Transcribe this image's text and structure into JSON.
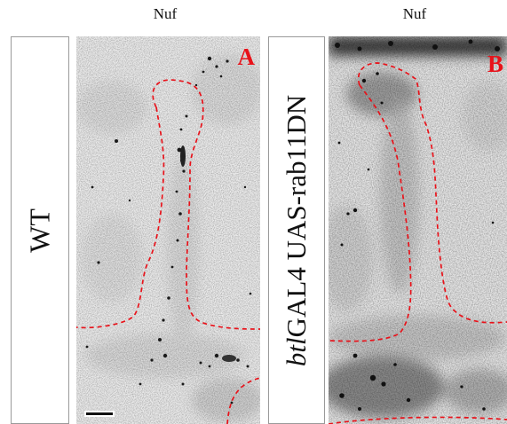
{
  "columns": {
    "a_title": "Nuf",
    "b_title": "Nuf"
  },
  "rows": {
    "a_label": "WT",
    "b_label_italic": "btl",
    "b_label_rest": "GAL4 UAS-rab11DN"
  },
  "panels": {
    "a_letter": "A",
    "b_letter": "B"
  },
  "colors": {
    "outline": "#e8121a",
    "letter": "#e8121a",
    "background": "#e9e9e9"
  }
}
